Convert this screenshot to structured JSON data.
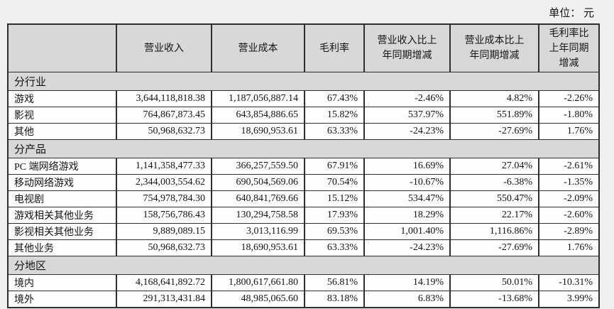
{
  "unit_label": "单位： 元",
  "colors": {
    "page_bg": "#f0f0ee",
    "header_bg": "#d8d8d8",
    "cell_bg": "#fdfdfd",
    "border": "#2e2e2e",
    "text": "#141414"
  },
  "table": {
    "columns": [
      "",
      "营业收入",
      "营业成本",
      "毛利率",
      "营业收入比上年同期增减",
      "营业成本比上年同期增减",
      "毛利率比上年同期增减"
    ],
    "sections": [
      {
        "label": "分行业",
        "rows": [
          {
            "label": "游戏",
            "values": [
              "3,644,118,818.38",
              "1,187,056,887.14",
              "67.43%",
              "-2.46%",
              "4.82%",
              "-2.26%"
            ]
          },
          {
            "label": "影视",
            "values": [
              "764,867,873.45",
              "643,854,886.65",
              "15.82%",
              "537.97%",
              "551.89%",
              "-1.80%"
            ]
          },
          {
            "label": "其他",
            "values": [
              "50,968,632.73",
              "18,690,953.61",
              "63.33%",
              "-24.23%",
              "-27.69%",
              "1.76%"
            ]
          }
        ]
      },
      {
        "label": "分产品",
        "rows": [
          {
            "label": "PC 端网络游戏",
            "values": [
              "1,141,358,477.33",
              "366,257,559.50",
              "67.91%",
              "16.69%",
              "27.04%",
              "-2.61%"
            ]
          },
          {
            "label": "移动网络游戏",
            "values": [
              "2,344,003,554.62",
              "690,504,569.06",
              "70.54%",
              "-10.67%",
              "-6.38%",
              "-1.35%"
            ]
          },
          {
            "label": "电视剧",
            "values": [
              "754,978,784.30",
              "640,841,769.66",
              "15.12%",
              "534.47%",
              "550.47%",
              "-2.09%"
            ]
          },
          {
            "label": "游戏相关其他业务",
            "values": [
              "158,756,786.43",
              "130,294,758.58",
              "17.93%",
              "18.29%",
              "22.17%",
              "-2.60%"
            ]
          },
          {
            "label": "影视相关其他业务",
            "values": [
              "9,889,089.15",
              "3,013,116.99",
              "69.53%",
              "1,001.40%",
              "1,116.86%",
              "-2.89%"
            ]
          },
          {
            "label": "其他业务",
            "values": [
              "50,968,632.73",
              "18,690,953.61",
              "63.33%",
              "-24.23%",
              "-27.69%",
              "1.76%"
            ]
          }
        ]
      },
      {
        "label": "分地区",
        "rows": [
          {
            "label": "境内",
            "values": [
              "4,168,641,892.72",
              "1,800,617,661.80",
              "56.81%",
              "14.19%",
              "50.01%",
              "-10.31%"
            ]
          },
          {
            "label": "境外",
            "values": [
              "291,313,431.84",
              "48,985,065.60",
              "83.18%",
              "6.83%",
              "-13.68%",
              "3.99%"
            ]
          }
        ]
      }
    ]
  }
}
